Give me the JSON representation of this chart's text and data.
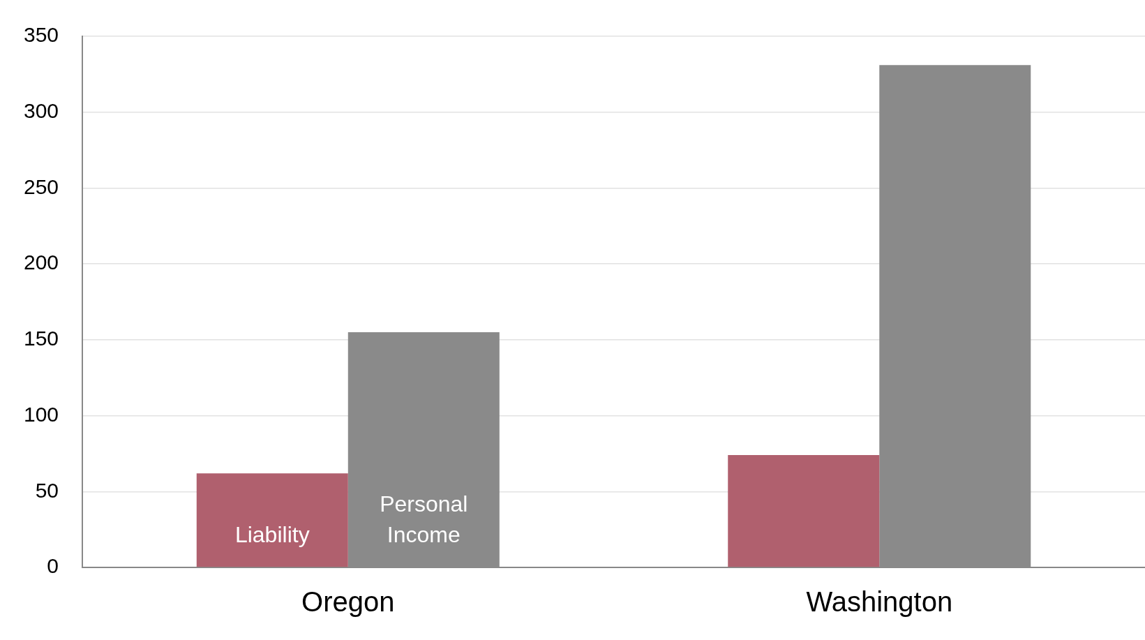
{
  "chart_data": {
    "type": "bar",
    "categories": [
      "Oregon",
      "Washington"
    ],
    "series": [
      {
        "name": "Liability",
        "color": "#b0606e",
        "values": [
          62,
          74
        ]
      },
      {
        "name": "Personal Income",
        "color": "#8a8a8a",
        "values": [
          155,
          331
        ]
      }
    ],
    "ylim": [
      0,
      350
    ],
    "yticks": [
      0,
      50,
      100,
      150,
      200,
      250,
      300,
      350
    ],
    "grid": "y",
    "legend": false
  }
}
